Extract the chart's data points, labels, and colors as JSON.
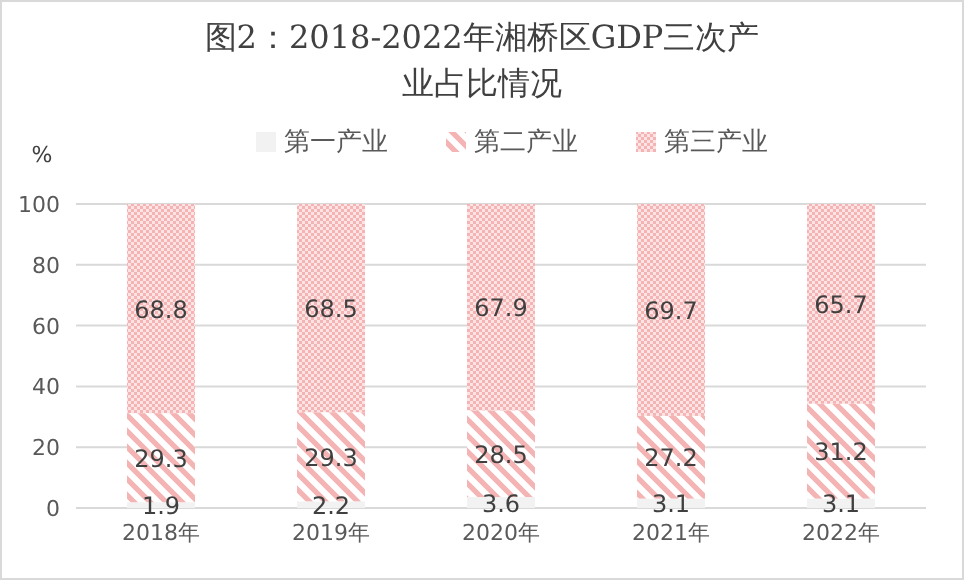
{
  "chart_data": {
    "type": "bar",
    "title": "图2：2018-2022年湘桥区GDP三次产业占比情况",
    "ylabel": "%",
    "categories": [
      "2018年",
      "2019年",
      "2020年",
      "2021年",
      "2022年"
    ],
    "series": [
      {
        "name": "第一产业",
        "color": "#f2f2f2",
        "values": [
          1.9,
          2.2,
          3.6,
          3.1,
          3.1
        ]
      },
      {
        "name": "第二产业",
        "color": "#f4b4b4",
        "values": [
          29.3,
          29.3,
          28.5,
          27.2,
          31.2
        ]
      },
      {
        "name": "第三产业",
        "color": "#f4b4b4",
        "values": [
          68.8,
          68.5,
          67.9,
          69.7,
          65.7
        ]
      }
    ],
    "stacked": true,
    "ylim": [
      0,
      100
    ],
    "yticks": [
      0,
      20,
      40,
      60,
      80,
      100
    ],
    "grid": "y",
    "legend": "top",
    "data_labels": true
  }
}
